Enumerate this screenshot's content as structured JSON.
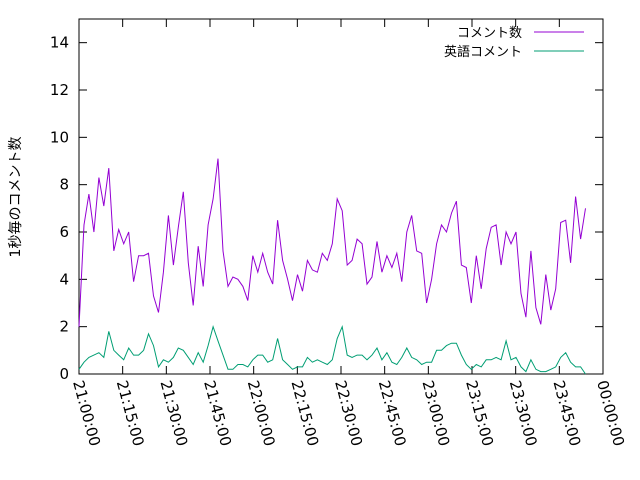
{
  "chart_data": {
    "type": "line",
    "title": "",
    "xlabel": "",
    "ylabel": "1秒毎のコメント数",
    "xlim_seconds_after_2100": [
      0,
      10800
    ],
    "ylim": [
      0,
      15
    ],
    "grid": false,
    "legend_position": "top-right",
    "x_tick_labels": [
      "21:00:00",
      "21:15:00",
      "21:30:00",
      "21:45:00",
      "22:00:00",
      "22:15:00",
      "22:30:00",
      "22:45:00",
      "23:00:00",
      "23:15:00",
      "23:30:00",
      "23:45:00",
      "00:00:00"
    ],
    "y_tick_labels": [
      "0",
      "2",
      "4",
      "6",
      "8",
      "10",
      "12",
      "14"
    ],
    "y_ticks": [
      0,
      2,
      4,
      6,
      8,
      10,
      12,
      14
    ],
    "series": [
      {
        "name": "コメント数",
        "color": "#9400d3",
        "values": [
          2.0,
          6.3,
          7.6,
          6.0,
          8.3,
          7.1,
          8.7,
          5.2,
          6.1,
          5.5,
          6.0,
          3.9,
          5.0,
          5.0,
          5.1,
          3.3,
          2.6,
          4.3,
          6.7,
          4.6,
          6.2,
          7.7,
          4.7,
          2.9,
          5.4,
          3.7,
          6.3,
          7.4,
          9.1,
          5.2,
          3.7,
          4.1,
          4.0,
          3.7,
          3.1,
          5.0,
          4.3,
          5.1,
          4.3,
          3.8,
          6.5,
          4.8,
          4.0,
          3.1,
          4.2,
          3.5,
          4.8,
          4.4,
          4.3,
          5.1,
          4.8,
          5.5,
          7.4,
          6.9,
          4.6,
          4.8,
          5.7,
          5.5,
          3.8,
          4.1,
          5.6,
          4.3,
          5.0,
          4.5,
          5.1,
          3.9,
          6.0,
          6.7,
          5.2,
          5.1,
          3.0,
          4.0,
          5.5,
          6.3,
          6.0,
          6.8,
          7.3,
          4.6,
          4.5,
          3.0,
          5.0,
          3.6,
          5.3,
          6.2,
          6.3,
          4.6,
          6.0,
          5.5,
          6.0,
          3.4,
          2.4,
          5.2,
          2.8,
          2.1,
          4.2,
          2.7,
          3.6,
          6.4,
          6.5,
          4.7,
          7.5,
          5.7,
          7.0
        ]
      },
      {
        "name": "英語コメント",
        "color": "#009e73",
        "values": [
          0.2,
          0.5,
          0.7,
          0.8,
          0.9,
          0.7,
          1.8,
          1.0,
          0.8,
          0.6,
          1.1,
          0.8,
          0.8,
          1.0,
          1.7,
          1.2,
          0.3,
          0.6,
          0.5,
          0.7,
          1.1,
          1.0,
          0.7,
          0.4,
          0.9,
          0.5,
          1.2,
          2.0,
          1.4,
          0.8,
          0.2,
          0.2,
          0.4,
          0.4,
          0.3,
          0.6,
          0.8,
          0.8,
          0.5,
          0.6,
          1.5,
          0.6,
          0.4,
          0.2,
          0.3,
          0.3,
          0.7,
          0.5,
          0.6,
          0.5,
          0.4,
          0.6,
          1.5,
          2.0,
          0.8,
          0.7,
          0.8,
          0.8,
          0.6,
          0.8,
          1.1,
          0.6,
          0.9,
          0.5,
          0.4,
          0.7,
          1.1,
          0.7,
          0.6,
          0.4,
          0.5,
          0.5,
          1.0,
          1.0,
          1.2,
          1.3,
          1.3,
          0.8,
          0.4,
          0.2,
          0.4,
          0.3,
          0.6,
          0.6,
          0.7,
          0.6,
          1.4,
          0.6,
          0.7,
          0.3,
          0.1,
          0.6,
          0.2,
          0.1,
          0.1,
          0.2,
          0.3,
          0.7,
          0.9,
          0.5,
          0.3,
          0.3,
          0.0
        ]
      }
    ]
  }
}
